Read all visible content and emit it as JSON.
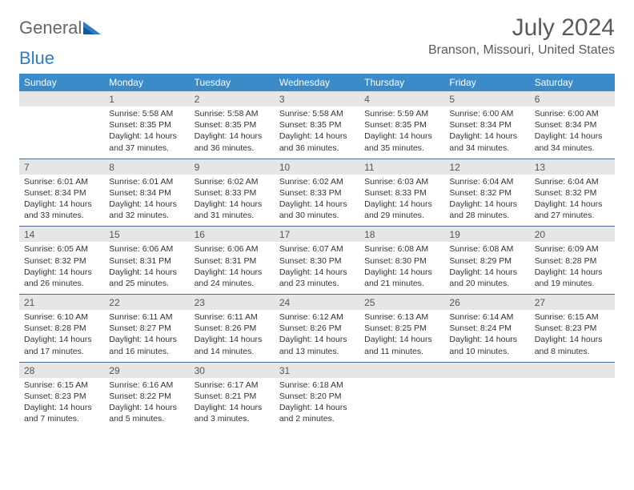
{
  "logo": {
    "text1": "General",
    "text2": "Blue"
  },
  "title": "July 2024",
  "location": "Branson, Missouri, United States",
  "colors": {
    "header_bg": "#3b8bc9",
    "header_text": "#ffffff",
    "daynum_bg": "#e6e6e6",
    "week_border": "#4a6a8a",
    "title_color": "#5a5a5a"
  },
  "dayNames": [
    "Sunday",
    "Monday",
    "Tuesday",
    "Wednesday",
    "Thursday",
    "Friday",
    "Saturday"
  ],
  "weeks": [
    [
      {
        "n": "",
        "sr": "",
        "ss": "",
        "dl": ""
      },
      {
        "n": "1",
        "sr": "Sunrise: 5:58 AM",
        "ss": "Sunset: 8:35 PM",
        "dl": "Daylight: 14 hours and 37 minutes."
      },
      {
        "n": "2",
        "sr": "Sunrise: 5:58 AM",
        "ss": "Sunset: 8:35 PM",
        "dl": "Daylight: 14 hours and 36 minutes."
      },
      {
        "n": "3",
        "sr": "Sunrise: 5:58 AM",
        "ss": "Sunset: 8:35 PM",
        "dl": "Daylight: 14 hours and 36 minutes."
      },
      {
        "n": "4",
        "sr": "Sunrise: 5:59 AM",
        "ss": "Sunset: 8:35 PM",
        "dl": "Daylight: 14 hours and 35 minutes."
      },
      {
        "n": "5",
        "sr": "Sunrise: 6:00 AM",
        "ss": "Sunset: 8:34 PM",
        "dl": "Daylight: 14 hours and 34 minutes."
      },
      {
        "n": "6",
        "sr": "Sunrise: 6:00 AM",
        "ss": "Sunset: 8:34 PM",
        "dl": "Daylight: 14 hours and 34 minutes."
      }
    ],
    [
      {
        "n": "7",
        "sr": "Sunrise: 6:01 AM",
        "ss": "Sunset: 8:34 PM",
        "dl": "Daylight: 14 hours and 33 minutes."
      },
      {
        "n": "8",
        "sr": "Sunrise: 6:01 AM",
        "ss": "Sunset: 8:34 PM",
        "dl": "Daylight: 14 hours and 32 minutes."
      },
      {
        "n": "9",
        "sr": "Sunrise: 6:02 AM",
        "ss": "Sunset: 8:33 PM",
        "dl": "Daylight: 14 hours and 31 minutes."
      },
      {
        "n": "10",
        "sr": "Sunrise: 6:02 AM",
        "ss": "Sunset: 8:33 PM",
        "dl": "Daylight: 14 hours and 30 minutes."
      },
      {
        "n": "11",
        "sr": "Sunrise: 6:03 AM",
        "ss": "Sunset: 8:33 PM",
        "dl": "Daylight: 14 hours and 29 minutes."
      },
      {
        "n": "12",
        "sr": "Sunrise: 6:04 AM",
        "ss": "Sunset: 8:32 PM",
        "dl": "Daylight: 14 hours and 28 minutes."
      },
      {
        "n": "13",
        "sr": "Sunrise: 6:04 AM",
        "ss": "Sunset: 8:32 PM",
        "dl": "Daylight: 14 hours and 27 minutes."
      }
    ],
    [
      {
        "n": "14",
        "sr": "Sunrise: 6:05 AM",
        "ss": "Sunset: 8:32 PM",
        "dl": "Daylight: 14 hours and 26 minutes."
      },
      {
        "n": "15",
        "sr": "Sunrise: 6:06 AM",
        "ss": "Sunset: 8:31 PM",
        "dl": "Daylight: 14 hours and 25 minutes."
      },
      {
        "n": "16",
        "sr": "Sunrise: 6:06 AM",
        "ss": "Sunset: 8:31 PM",
        "dl": "Daylight: 14 hours and 24 minutes."
      },
      {
        "n": "17",
        "sr": "Sunrise: 6:07 AM",
        "ss": "Sunset: 8:30 PM",
        "dl": "Daylight: 14 hours and 23 minutes."
      },
      {
        "n": "18",
        "sr": "Sunrise: 6:08 AM",
        "ss": "Sunset: 8:30 PM",
        "dl": "Daylight: 14 hours and 21 minutes."
      },
      {
        "n": "19",
        "sr": "Sunrise: 6:08 AM",
        "ss": "Sunset: 8:29 PM",
        "dl": "Daylight: 14 hours and 20 minutes."
      },
      {
        "n": "20",
        "sr": "Sunrise: 6:09 AM",
        "ss": "Sunset: 8:28 PM",
        "dl": "Daylight: 14 hours and 19 minutes."
      }
    ],
    [
      {
        "n": "21",
        "sr": "Sunrise: 6:10 AM",
        "ss": "Sunset: 8:28 PM",
        "dl": "Daylight: 14 hours and 17 minutes."
      },
      {
        "n": "22",
        "sr": "Sunrise: 6:11 AM",
        "ss": "Sunset: 8:27 PM",
        "dl": "Daylight: 14 hours and 16 minutes."
      },
      {
        "n": "23",
        "sr": "Sunrise: 6:11 AM",
        "ss": "Sunset: 8:26 PM",
        "dl": "Daylight: 14 hours and 14 minutes."
      },
      {
        "n": "24",
        "sr": "Sunrise: 6:12 AM",
        "ss": "Sunset: 8:26 PM",
        "dl": "Daylight: 14 hours and 13 minutes."
      },
      {
        "n": "25",
        "sr": "Sunrise: 6:13 AM",
        "ss": "Sunset: 8:25 PM",
        "dl": "Daylight: 14 hours and 11 minutes."
      },
      {
        "n": "26",
        "sr": "Sunrise: 6:14 AM",
        "ss": "Sunset: 8:24 PM",
        "dl": "Daylight: 14 hours and 10 minutes."
      },
      {
        "n": "27",
        "sr": "Sunrise: 6:15 AM",
        "ss": "Sunset: 8:23 PM",
        "dl": "Daylight: 14 hours and 8 minutes."
      }
    ],
    [
      {
        "n": "28",
        "sr": "Sunrise: 6:15 AM",
        "ss": "Sunset: 8:23 PM",
        "dl": "Daylight: 14 hours and 7 minutes."
      },
      {
        "n": "29",
        "sr": "Sunrise: 6:16 AM",
        "ss": "Sunset: 8:22 PM",
        "dl": "Daylight: 14 hours and 5 minutes."
      },
      {
        "n": "30",
        "sr": "Sunrise: 6:17 AM",
        "ss": "Sunset: 8:21 PM",
        "dl": "Daylight: 14 hours and 3 minutes."
      },
      {
        "n": "31",
        "sr": "Sunrise: 6:18 AM",
        "ss": "Sunset: 8:20 PM",
        "dl": "Daylight: 14 hours and 2 minutes."
      },
      {
        "n": "",
        "sr": "",
        "ss": "",
        "dl": ""
      },
      {
        "n": "",
        "sr": "",
        "ss": "",
        "dl": ""
      },
      {
        "n": "",
        "sr": "",
        "ss": "",
        "dl": ""
      }
    ]
  ]
}
